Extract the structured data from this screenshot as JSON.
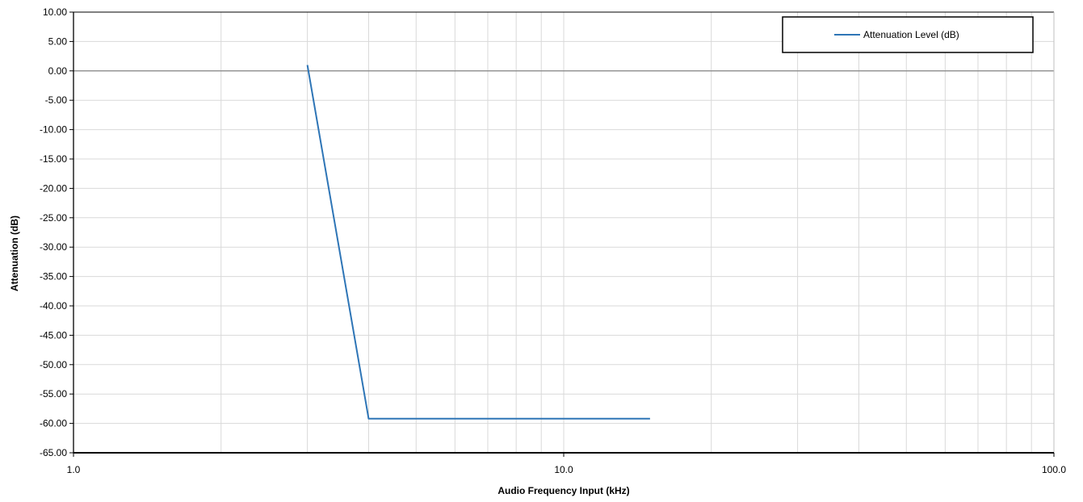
{
  "chart_data": {
    "type": "line",
    "title": "",
    "xlabel": "Audio Frequency Input (kHz)",
    "ylabel": "Attenuation (dB)",
    "x_scale": "log",
    "xlim": [
      1,
      100
    ],
    "ylim": [
      -65,
      10
    ],
    "x_ticks": [
      1,
      10,
      100
    ],
    "x_tick_labels": [
      "1.0",
      "10.0",
      "100.0"
    ],
    "y_ticks": [
      10,
      5,
      0,
      -5,
      -10,
      -15,
      -20,
      -25,
      -30,
      -35,
      -40,
      -45,
      -50,
      -55,
      -60,
      -65
    ],
    "y_tick_labels": [
      "10.00",
      "5.00",
      "0.00",
      "-5.00",
      "-10.00",
      "-15.00",
      "-20.00",
      "-25.00",
      "-30.00",
      "-35.00",
      "-40.00",
      "-45.00",
      "-50.00",
      "-55.00",
      "-60.00",
      "-65.00"
    ],
    "grid": true,
    "legend_position": "top-right",
    "series": [
      {
        "name": "Attenuation Level (dB)",
        "color": "#2E75B6",
        "x": [
          3,
          4,
          15
        ],
        "y": [
          1,
          -59.2,
          -59.2
        ]
      }
    ]
  }
}
